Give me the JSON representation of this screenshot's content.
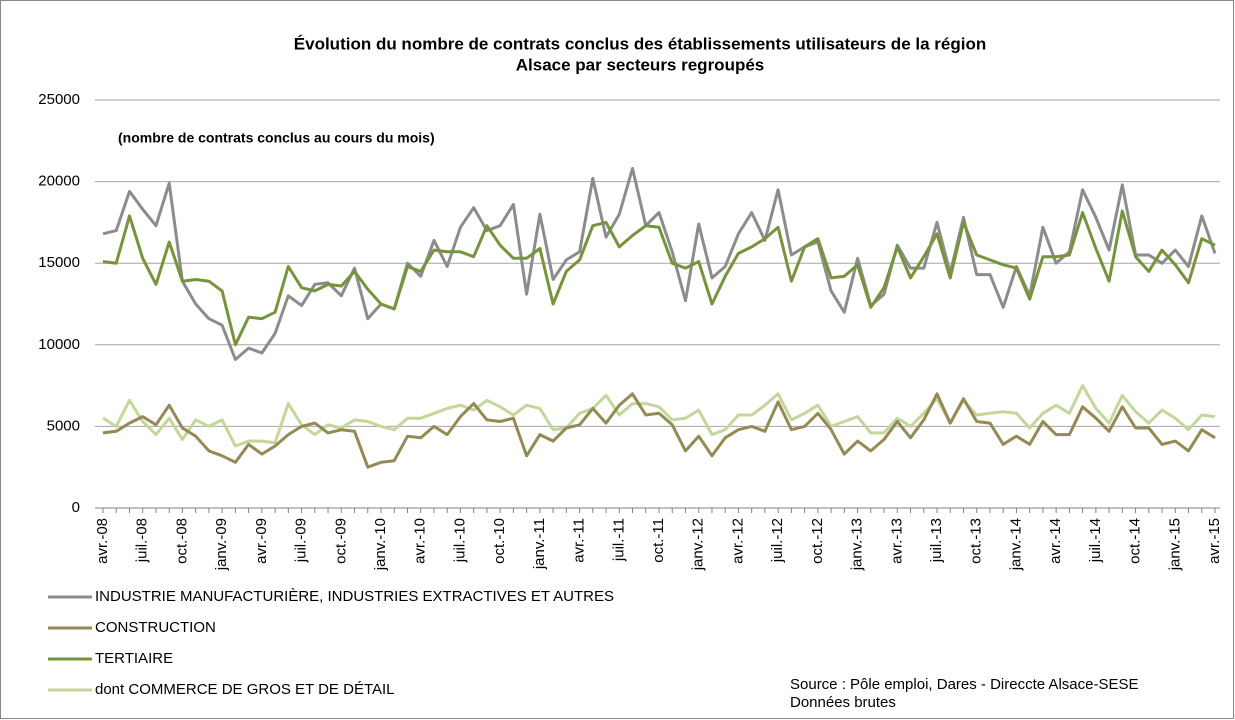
{
  "chart_data": {
    "type": "line",
    "title": [
      "Évolution du nombre de contrats conclus des établissements utilisateurs de la région",
      "Alsace par secteurs regroupés"
    ],
    "annotation": "(nombre de contrats conclus au cours du mois)",
    "source": [
      "Source : Pôle emploi, Dares - Direccte Alsace-SESE",
      "Données brutes"
    ],
    "categories": [
      "avr.-08",
      null,
      null,
      "juil.-08",
      null,
      null,
      "oct.-08",
      null,
      null,
      "janv.-09",
      null,
      null,
      "avr.-09",
      null,
      null,
      "juil.-09",
      null,
      null,
      "oct.-09",
      null,
      null,
      "janv.-10",
      null,
      null,
      "avr.-10",
      null,
      null,
      "juil.-10",
      null,
      null,
      "oct.-10",
      null,
      null,
      "janv.-11",
      null,
      null,
      "avr.-11",
      null,
      null,
      "juil.-11",
      null,
      null,
      "oct.-11",
      null,
      null,
      "janv.-12",
      null,
      null,
      "avr.-12",
      null,
      null,
      "juil.-12",
      null,
      null,
      "oct.-12",
      null,
      null,
      "janv.-13",
      null,
      null,
      "avr.-13",
      null,
      null,
      "juil.-13",
      null,
      null,
      "oct.-13",
      null,
      null,
      "janv.-14",
      null,
      null,
      "avr.-14",
      null,
      null,
      "juil.-14",
      null,
      null,
      "oct.-14",
      null,
      null,
      "janv.-15",
      null,
      null,
      "avr.-15"
    ],
    "ylim": [
      0,
      25000
    ],
    "yticks": [
      0,
      5000,
      10000,
      15000,
      20000,
      25000
    ],
    "grid": true,
    "legend": "bottom",
    "series": [
      {
        "name": "INDUSTRIE MANUFACTURIÈRE, INDUSTRIES EXTRACTIVES  ET AUTRES",
        "color": "#8c8c8c",
        "values": [
          16800,
          17000,
          19400,
          18300,
          17300,
          19900,
          13900,
          12500,
          11600,
          11200,
          9100,
          9800,
          9500,
          10700,
          13000,
          12400,
          13700,
          13800,
          13000,
          14700,
          11600,
          12500,
          12200,
          15000,
          14200,
          16400,
          14800,
          17200,
          18400,
          17000,
          17300,
          18600,
          13100,
          18000,
          14000,
          15200,
          15700,
          20200,
          16600,
          18000,
          20800,
          17300,
          18100,
          15700,
          12700,
          17400,
          14100,
          14800,
          16800,
          18100,
          16400,
          19500,
          15500,
          16000,
          16300,
          13300,
          12000,
          15300,
          12400,
          13100,
          16100,
          14700,
          14700,
          17500,
          14400,
          17800,
          14300,
          14300,
          12300,
          14800,
          13000,
          17200,
          15000,
          15700,
          19500,
          17800,
          15800,
          19800,
          15500,
          15500,
          15000,
          15800,
          14800,
          17900,
          15600
        ]
      },
      {
        "name": "CONSTRUCTION",
        "color": "#948a54",
        "values": [
          4600,
          4700,
          5200,
          5600,
          5100,
          6300,
          4900,
          4400,
          3500,
          3200,
          2800,
          3900,
          3300,
          3800,
          4500,
          5000,
          5200,
          4600,
          4800,
          4700,
          2500,
          2800,
          2900,
          4400,
          4300,
          5000,
          4500,
          5600,
          6400,
          5400,
          5300,
          5500,
          3200,
          4500,
          4100,
          4900,
          5100,
          6100,
          5200,
          6300,
          7000,
          5700,
          5800,
          5100,
          3500,
          4400,
          3200,
          4300,
          4800,
          5000,
          4700,
          6500,
          4800,
          5000,
          5800,
          4800,
          3300,
          4100,
          3500,
          4200,
          5300,
          4300,
          5400,
          7000,
          5200,
          6700,
          5300,
          5200,
          3900,
          4400,
          3900,
          5300,
          4500,
          4500,
          6200,
          5500,
          4700,
          6200,
          4900,
          4900,
          3900,
          4100,
          3500,
          4800,
          4300
        ]
      },
      {
        "name": "TERTIAIRE",
        "color": "#77933c",
        "values": [
          15100,
          15000,
          17900,
          15300,
          13700,
          16300,
          13900,
          14000,
          13900,
          13300,
          10000,
          11700,
          11600,
          12000,
          14800,
          13500,
          13300,
          13700,
          13600,
          14500,
          13400,
          12500,
          12200,
          14800,
          14500,
          15800,
          15700,
          15700,
          15400,
          17300,
          16100,
          15300,
          15300,
          15900,
          12500,
          14500,
          15200,
          17300,
          17500,
          16000,
          16700,
          17300,
          17200,
          15000,
          14700,
          15100,
          12500,
          14200,
          15600,
          16000,
          16500,
          17200,
          13900,
          16000,
          16500,
          14100,
          14200,
          14900,
          12300,
          13500,
          16000,
          14100,
          15400,
          16800,
          14100,
          17500,
          15500,
          15200,
          14900,
          14700,
          12800,
          15400,
          15400,
          15500,
          18100,
          15900,
          13900,
          18200,
          15400,
          14500,
          15800,
          14900,
          13800,
          16500,
          16100
        ]
      },
      {
        "name": "dont COMMERCE DE GROS ET DE DÉTAIL",
        "color": "#c4d79b",
        "values": [
          5500,
          5000,
          6600,
          5300,
          4500,
          5500,
          4200,
          5400,
          5000,
          5400,
          3800,
          4100,
          4100,
          4000,
          6400,
          5100,
          4500,
          5100,
          4900,
          5400,
          5300,
          5000,
          4800,
          5500,
          5500,
          5800,
          6100,
          6300,
          6000,
          6600,
          6200,
          5700,
          6300,
          6100,
          4800,
          4900,
          5800,
          6100,
          6900,
          5700,
          6400,
          6400,
          6200,
          5400,
          5500,
          6000,
          4500,
          4800,
          5700,
          5700,
          6300,
          7000,
          5400,
          5800,
          6300,
          5000,
          5300,
          5600,
          4600,
          4600,
          5500,
          5000,
          5800,
          6700,
          5200,
          6600,
          5700,
          5800,
          5900,
          5800,
          4900,
          5800,
          6300,
          5800,
          7500,
          6100,
          5200,
          6900,
          5900,
          5200,
          6000,
          5500,
          4800,
          5700,
          5600
        ]
      }
    ]
  }
}
